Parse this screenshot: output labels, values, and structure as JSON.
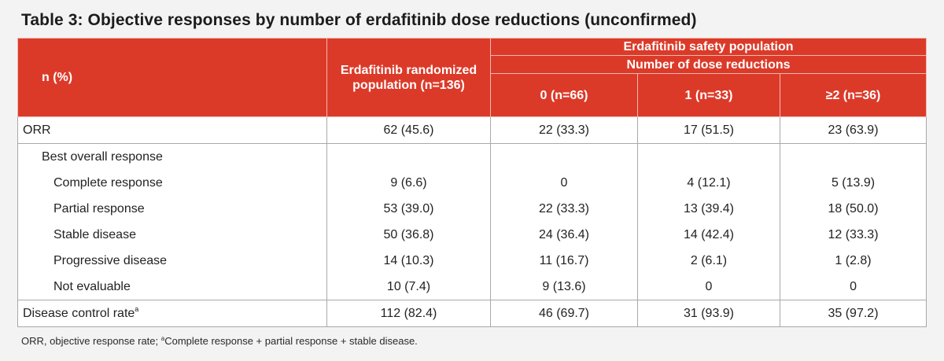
{
  "title": "Table 3: Objective responses by number of erdafitinib dose reductions (unconfirmed)",
  "table": {
    "headers": {
      "row_label": "n (%)",
      "randomized_col": "Erdafitinib randomized population (n=136)",
      "safety_group": "Erdafitinib safety population",
      "dose_group": "Number of dose reductions",
      "dose_cols": [
        "0 (n=66)",
        "1 (n=33)",
        "≥2 (n=36)"
      ]
    },
    "rows": [
      {
        "label": "ORR",
        "sup": "",
        "values": [
          "62 (45.6)",
          "22 (33.3)",
          "17 (51.5)",
          "23 (63.9)"
        ]
      },
      {
        "label": "Best overall response",
        "sup": "",
        "values": [
          "",
          "",
          "",
          ""
        ]
      },
      {
        "label": "Complete response",
        "sup": "",
        "values": [
          "9 (6.6)",
          "0",
          "4 (12.1)",
          "5 (13.9)"
        ]
      },
      {
        "label": "Partial response",
        "sup": "",
        "values": [
          "53 (39.0)",
          "22 (33.3)",
          "13 (39.4)",
          "18 (50.0)"
        ]
      },
      {
        "label": "Stable disease",
        "sup": "",
        "values": [
          "50 (36.8)",
          "24 (36.4)",
          "14 (42.4)",
          "12 (33.3)"
        ]
      },
      {
        "label": "Progressive disease",
        "sup": "",
        "values": [
          "14 (10.3)",
          "11 (16.7)",
          "2 (6.1)",
          "1 (2.8)"
        ]
      },
      {
        "label": "Not evaluable",
        "sup": "",
        "values": [
          "10 (7.4)",
          "9 (13.6)",
          "0",
          "0"
        ]
      },
      {
        "label": "Disease control rate",
        "sup": "a",
        "values": [
          "112 (82.4)",
          "46 (69.7)",
          "31 (93.9)",
          "35 (97.2)"
        ]
      }
    ]
  },
  "footnote": {
    "part1": "ORR, objective response rate; ",
    "sup": "a",
    "part2": "Complete response + partial response + stable disease."
  },
  "colors": {
    "header_bg": "#dc3a29",
    "header_text": "#ffffff",
    "page_bg": "#f3f3f3",
    "table_bg": "#ffffff"
  }
}
